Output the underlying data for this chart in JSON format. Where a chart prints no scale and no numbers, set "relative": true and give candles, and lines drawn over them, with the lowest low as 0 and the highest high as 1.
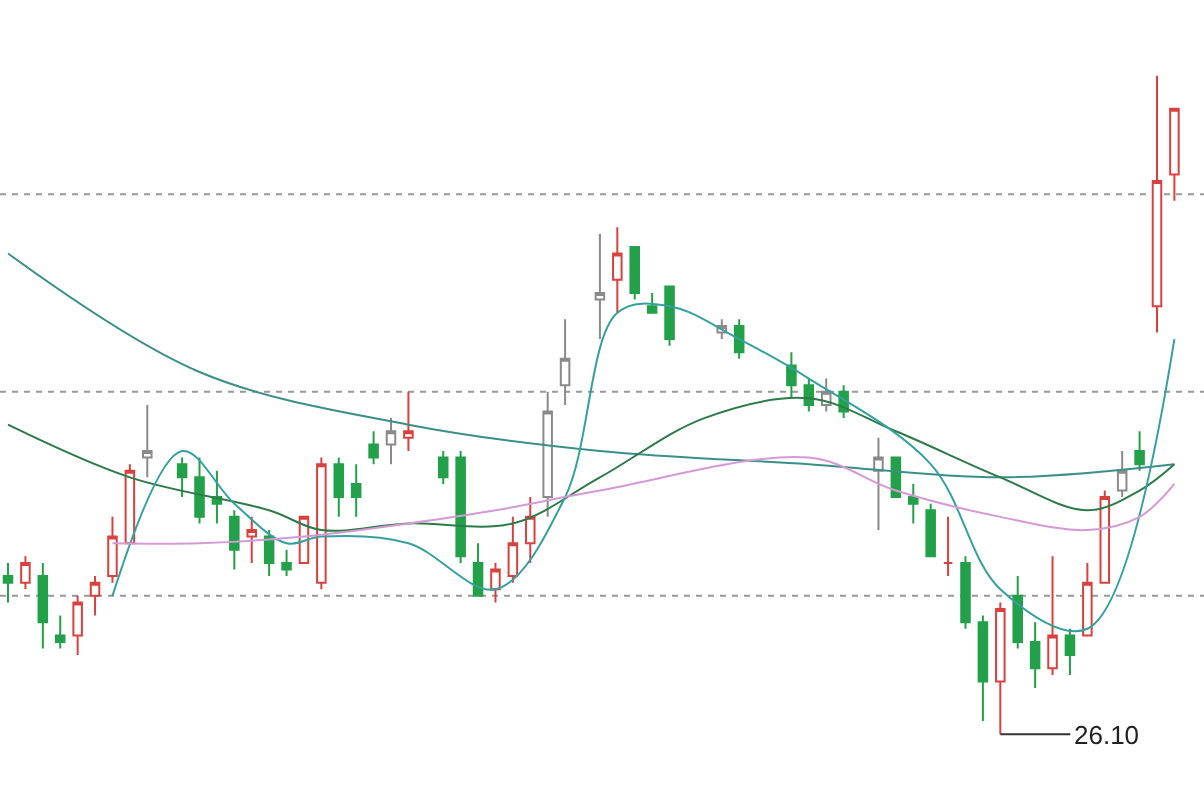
{
  "chart_data": {
    "type": "candlestick",
    "relative": true,
    "categories": [
      null,
      null,
      null,
      null,
      null,
      null,
      null,
      null,
      null,
      null,
      null,
      null,
      null,
      null,
      null,
      null,
      null,
      null,
      null,
      null,
      null,
      null,
      null,
      null,
      null,
      null,
      null,
      null,
      null,
      null,
      null,
      null,
      null,
      null,
      null,
      null,
      null,
      null,
      null,
      null,
      null,
      null,
      null,
      null,
      null,
      null,
      null,
      null,
      null,
      null,
      null,
      null,
      null,
      null,
      null,
      null,
      null,
      null,
      null,
      null,
      null,
      null,
      null,
      null,
      null,
      null,
      null,
      null
    ],
    "ohlc": [
      [
        0.24,
        0.26,
        0.2,
        0.23
      ],
      [
        0.23,
        0.27,
        0.22,
        0.26
      ],
      [
        0.24,
        0.26,
        0.13,
        0.17
      ],
      [
        0.15,
        0.18,
        0.13,
        0.14
      ],
      [
        0.15,
        0.21,
        0.12,
        0.2
      ],
      [
        0.21,
        0.24,
        0.18,
        0.23
      ],
      [
        0.24,
        0.33,
        0.23,
        0.3
      ],
      [
        0.29,
        0.41,
        0.29,
        0.4
      ],
      [
        0.42,
        0.5,
        0.39,
        0.43
      ],
      null,
      [
        0.41,
        0.42,
        0.36,
        0.39
      ],
      [
        0.39,
        0.42,
        0.32,
        0.33
      ],
      [
        0.36,
        0.4,
        0.32,
        0.35
      ],
      [
        0.33,
        0.34,
        0.25,
        0.28
      ],
      [
        0.3,
        0.33,
        0.26,
        0.31
      ],
      [
        0.3,
        0.31,
        0.24,
        0.26
      ],
      [
        0.26,
        0.28,
        0.24,
        0.25
      ],
      [
        0.26,
        0.33,
        0.26,
        0.33
      ],
      [
        0.23,
        0.42,
        0.22,
        0.41
      ],
      [
        0.41,
        0.42,
        0.33,
        0.36
      ],
      [
        0.38,
        0.41,
        0.33,
        0.36
      ],
      [
        0.44,
        0.46,
        0.41,
        0.42
      ],
      [
        0.44,
        0.48,
        0.41,
        0.46
      ],
      [
        0.45,
        0.52,
        0.43,
        0.46
      ],
      null,
      [
        0.42,
        0.43,
        0.38,
        0.39
      ],
      [
        0.42,
        0.43,
        0.26,
        0.27
      ],
      [
        0.26,
        0.29,
        0.21,
        0.21
      ],
      [
        0.22,
        0.26,
        0.2,
        0.25
      ],
      [
        0.24,
        0.33,
        0.23,
        0.29
      ],
      [
        0.29,
        0.36,
        0.26,
        0.33
      ],
      [
        0.36,
        0.52,
        0.33,
        0.49
      ],
      [
        0.53,
        0.63,
        0.5,
        0.57
      ],
      null,
      [
        0.66,
        0.76,
        0.6,
        0.67
      ],
      [
        0.69,
        0.77,
        0.64,
        0.73
      ],
      [
        0.74,
        0.74,
        0.66,
        0.67
      ],
      [
        0.65,
        0.67,
        0.64,
        0.64
      ],
      [
        0.68,
        0.68,
        0.59,
        0.6
      ],
      null,
      null,
      [
        0.61,
        0.63,
        0.6,
        0.62
      ],
      [
        0.62,
        0.63,
        0.57,
        0.58
      ],
      null,
      null,
      [
        0.56,
        0.58,
        0.51,
        0.53
      ],
      [
        0.53,
        0.54,
        0.49,
        0.5
      ],
      [
        0.5,
        0.54,
        0.49,
        0.52
      ],
      [
        0.52,
        0.53,
        0.48,
        0.49
      ],
      null,
      [
        0.4,
        0.45,
        0.31,
        0.42
      ],
      [
        0.42,
        0.42,
        0.36,
        0.36
      ],
      [
        0.36,
        0.38,
        0.32,
        0.35
      ],
      [
        0.34,
        0.35,
        0.27,
        0.27
      ],
      [
        0.26,
        0.33,
        0.24,
        0.26
      ],
      [
        0.26,
        0.27,
        0.16,
        0.17
      ],
      [
        0.17,
        0.18,
        0.02,
        0.08
      ],
      [
        0.08,
        0.2,
        0.0,
        0.19
      ],
      [
        0.21,
        0.24,
        0.13,
        0.14
      ],
      [
        0.14,
        0.17,
        0.07,
        0.1
      ],
      [
        0.1,
        0.27,
        0.09,
        0.15
      ],
      [
        0.15,
        0.16,
        0.09,
        0.12
      ],
      [
        0.15,
        0.26,
        0.15,
        0.23
      ],
      [
        0.23,
        0.37,
        0.23,
        0.36
      ],
      [
        0.37,
        0.43,
        0.36,
        0.4
      ],
      [
        0.43,
        0.46,
        0.4,
        0.41
      ],
      [
        0.65,
        1.0,
        0.61,
        0.84
      ],
      [
        0.85,
        0.95,
        0.81,
        0.95
      ]
    ],
    "colors": [
      "#23a04a",
      "#d9413f",
      "#23a04a",
      "#23a04a",
      "#d9413f",
      "#d9413f",
      "#d9413f",
      "#d9413f",
      "#8a8a8a",
      null,
      "#23a04a",
      "#23a04a",
      "#23a04a",
      "#23a04a",
      "#d9413f",
      "#23a04a",
      "#23a04a",
      "#d9413f",
      "#d9413f",
      "#23a04a",
      "#23a04a",
      "#23a04a",
      "#8a8a8a",
      "#d9413f",
      null,
      "#23a04a",
      "#23a04a",
      "#23a04a",
      "#d9413f",
      "#d9413f",
      "#d9413f",
      "#8a8a8a",
      "#8a8a8a",
      null,
      "#8a8a8a",
      "#d9413f",
      "#23a04a",
      "#23a04a",
      "#23a04a",
      null,
      null,
      "#8a8a8a",
      "#23a04a",
      null,
      null,
      "#23a04a",
      "#23a04a",
      "#8a8a8a",
      "#23a04a",
      null,
      "#8a8a8a",
      "#23a04a",
      "#23a04a",
      "#23a04a",
      "#d9413f",
      "#23a04a",
      "#23a04a",
      "#d9413f",
      "#23a04a",
      "#23a04a",
      "#d9413f",
      "#23a04a",
      "#d9413f",
      "#d9413f",
      "#8a8a8a",
      "#23a04a",
      "#d9413f",
      "#d9413f"
    ],
    "series": [
      {
        "type": "line",
        "color": "#3a8f88",
        "values": [
          0.73,
          null,
          null,
          null,
          null,
          null,
          null,
          null,
          null,
          null,
          null,
          0.55,
          null,
          null,
          null,
          null,
          null,
          null,
          null,
          null,
          null,
          null,
          null,
          0.47,
          null,
          null,
          null,
          null,
          null,
          null,
          null,
          null,
          null,
          null,
          0.43,
          null,
          null,
          null,
          null,
          null,
          null,
          null,
          null,
          null,
          null,
          null,
          0.41,
          null,
          null,
          null,
          null,
          null,
          null,
          null,
          null,
          null,
          null,
          0.39,
          null,
          null,
          null,
          null,
          null,
          null,
          null,
          null,
          null,
          0.41
        ]
      },
      {
        "type": "line",
        "color": "#2d7a4a",
        "values": [
          0.47,
          null,
          null,
          null,
          null,
          null,
          null,
          0.39,
          null,
          null,
          null,
          null,
          null,
          null,
          null,
          0.34,
          null,
          null,
          0.31,
          null,
          null,
          null,
          null,
          0.32,
          null,
          null,
          null,
          null,
          null,
          0.32,
          null,
          null,
          null,
          null,
          0.39,
          null,
          null,
          null,
          null,
          null,
          0.48,
          null,
          null,
          null,
          null,
          null,
          0.51,
          null,
          null,
          null,
          null,
          0.46,
          null,
          null,
          null,
          null,
          null,
          0.39,
          null,
          null,
          null,
          null,
          0.34,
          null,
          null,
          0.37,
          null,
          0.41
        ]
      },
      {
        "type": "line",
        "color": "#35a0a0",
        "values": [
          null,
          null,
          null,
          null,
          null,
          null,
          0.21,
          null,
          null,
          null,
          0.43,
          null,
          null,
          0.35,
          null,
          null,
          0.29,
          null,
          0.3,
          null,
          null,
          null,
          null,
          0.29,
          null,
          null,
          null,
          null,
          0.22,
          null,
          null,
          null,
          0.36,
          null,
          null,
          0.64,
          null,
          null,
          0.65,
          null,
          null,
          null,
          0.6,
          null,
          null,
          null,
          0.54,
          null,
          null,
          null,
          null,
          null,
          null,
          0.41,
          null,
          null,
          null,
          0.22,
          null,
          null,
          null,
          null,
          0.16,
          null,
          null,
          null,
          null,
          0.6
        ]
      },
      {
        "type": "line",
        "color": "#d59ad5",
        "values": [
          null,
          null,
          null,
          null,
          null,
          null,
          0.29,
          null,
          null,
          null,
          null,
          0.29,
          null,
          null,
          null,
          null,
          null,
          0.3,
          null,
          null,
          null,
          null,
          null,
          0.32,
          null,
          null,
          null,
          null,
          0.34,
          null,
          null,
          null,
          null,
          null,
          0.37,
          null,
          null,
          null,
          null,
          null,
          null,
          null,
          null,
          null,
          null,
          null,
          0.42,
          null,
          null,
          null,
          null,
          0.37,
          null,
          null,
          null,
          null,
          null,
          0.33,
          null,
          null,
          null,
          null,
          0.31,
          null,
          null,
          0.33,
          null,
          0.38
        ]
      }
    ],
    "ref_lines": [
      {
        "axis": "y",
        "value": 0.82,
        "color": "#999999",
        "line_style": "dotted"
      },
      {
        "axis": "y",
        "value": 0.52,
        "color": "#999999",
        "line_style": "dotted"
      },
      {
        "axis": "y",
        "value": 0.21,
        "color": "#999999",
        "line_style": "dotted"
      }
    ],
    "annotations": [
      "26.10"
    ],
    "tick_labels": false
  }
}
